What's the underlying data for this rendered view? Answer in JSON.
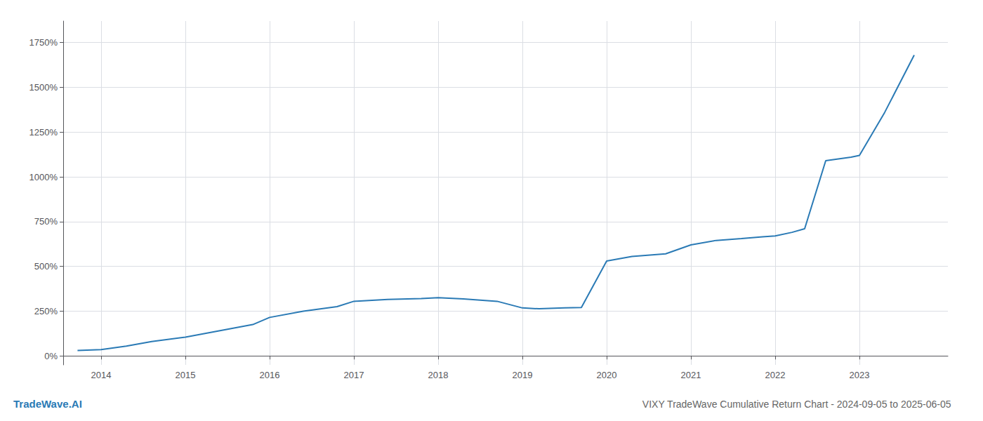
{
  "chart_data": {
    "type": "line",
    "title": "VIXY TradeWave Cumulative Return Chart - 2024-09-05 to 2025-06-05",
    "annotations": [
      "TradeWave.AI"
    ],
    "color": "#2a7ab5",
    "x": [
      2013.72,
      2014.0,
      2014.3,
      2014.6,
      2015.0,
      2015.4,
      2015.8,
      2016.0,
      2016.4,
      2016.8,
      2017.0,
      2017.4,
      2017.8,
      2018.0,
      2018.3,
      2018.7,
      2019.0,
      2019.2,
      2019.5,
      2019.7,
      2020.0,
      2020.3,
      2020.7,
      2021.0,
      2021.3,
      2021.6,
      2021.85,
      2022.0,
      2022.2,
      2022.35,
      2022.6,
      2022.9,
      2023.0,
      2023.3,
      2023.65
    ],
    "values": [
      30,
      35,
      55,
      80,
      105,
      140,
      175,
      215,
      250,
      275,
      305,
      315,
      320,
      325,
      318,
      305,
      268,
      263,
      268,
      270,
      530,
      555,
      570,
      620,
      645,
      655,
      665,
      670,
      690,
      710,
      1090,
      1110,
      1120,
      1360,
      1680
    ],
    "xlim": [
      2013.55,
      2024.05
    ],
    "xticks": [
      2014,
      2015,
      2016,
      2017,
      2018,
      2019,
      2020,
      2021,
      2022,
      2023
    ],
    "ylim": [
      -50,
      1870
    ],
    "yticks": [
      {
        "value": 0,
        "label": "0%"
      },
      {
        "value": 250,
        "label": "250%"
      },
      {
        "value": 500,
        "label": "500%"
      },
      {
        "value": 750,
        "label": "750%"
      },
      {
        "value": 1000,
        "label": "1000%"
      },
      {
        "value": 1250,
        "label": "1250%"
      },
      {
        "value": 1500,
        "label": "1500%"
      },
      {
        "value": 1750,
        "label": "1750%"
      }
    ],
    "grid": true
  }
}
